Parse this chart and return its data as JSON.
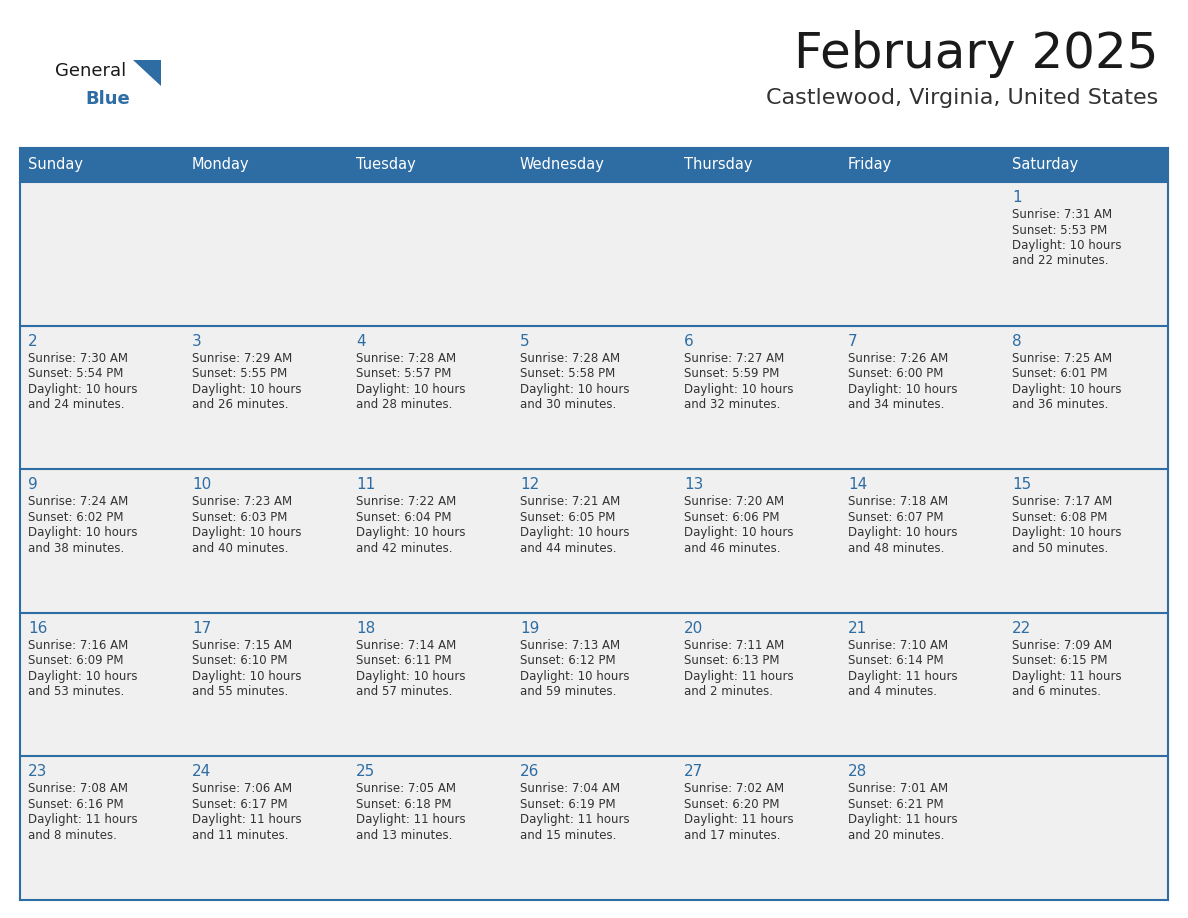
{
  "title": "February 2025",
  "subtitle": "Castlewood, Virginia, United States",
  "header_bg": "#2E6DA4",
  "header_text": "#FFFFFF",
  "row_bg": "#F0F0F0",
  "cell_bg": "#FFFFFF",
  "border_color": "#2E6DA4",
  "day_headers": [
    "Sunday",
    "Monday",
    "Tuesday",
    "Wednesday",
    "Thursday",
    "Friday",
    "Saturday"
  ],
  "title_color": "#1a1a1a",
  "subtitle_color": "#333333",
  "day_number_color": "#2E6DA4",
  "info_color": "#333333",
  "logo_general_color": "#1a1a1a",
  "logo_blue_color": "#2E6DA4",
  "logo_triangle_color": "#2E6DA4",
  "calendar_data": [
    [
      null,
      null,
      null,
      null,
      null,
      null,
      {
        "day": "1",
        "sunrise": "7:31 AM",
        "sunset": "5:53 PM",
        "daylight1": "Daylight: 10 hours",
        "daylight2": "and 22 minutes."
      }
    ],
    [
      {
        "day": "2",
        "sunrise": "7:30 AM",
        "sunset": "5:54 PM",
        "daylight1": "Daylight: 10 hours",
        "daylight2": "and 24 minutes."
      },
      {
        "day": "3",
        "sunrise": "7:29 AM",
        "sunset": "5:55 PM",
        "daylight1": "Daylight: 10 hours",
        "daylight2": "and 26 minutes."
      },
      {
        "day": "4",
        "sunrise": "7:28 AM",
        "sunset": "5:57 PM",
        "daylight1": "Daylight: 10 hours",
        "daylight2": "and 28 minutes."
      },
      {
        "day": "5",
        "sunrise": "7:28 AM",
        "sunset": "5:58 PM",
        "daylight1": "Daylight: 10 hours",
        "daylight2": "and 30 minutes."
      },
      {
        "day": "6",
        "sunrise": "7:27 AM",
        "sunset": "5:59 PM",
        "daylight1": "Daylight: 10 hours",
        "daylight2": "and 32 minutes."
      },
      {
        "day": "7",
        "sunrise": "7:26 AM",
        "sunset": "6:00 PM",
        "daylight1": "Daylight: 10 hours",
        "daylight2": "and 34 minutes."
      },
      {
        "day": "8",
        "sunrise": "7:25 AM",
        "sunset": "6:01 PM",
        "daylight1": "Daylight: 10 hours",
        "daylight2": "and 36 minutes."
      }
    ],
    [
      {
        "day": "9",
        "sunrise": "7:24 AM",
        "sunset": "6:02 PM",
        "daylight1": "Daylight: 10 hours",
        "daylight2": "and 38 minutes."
      },
      {
        "day": "10",
        "sunrise": "7:23 AM",
        "sunset": "6:03 PM",
        "daylight1": "Daylight: 10 hours",
        "daylight2": "and 40 minutes."
      },
      {
        "day": "11",
        "sunrise": "7:22 AM",
        "sunset": "6:04 PM",
        "daylight1": "Daylight: 10 hours",
        "daylight2": "and 42 minutes."
      },
      {
        "day": "12",
        "sunrise": "7:21 AM",
        "sunset": "6:05 PM",
        "daylight1": "Daylight: 10 hours",
        "daylight2": "and 44 minutes."
      },
      {
        "day": "13",
        "sunrise": "7:20 AM",
        "sunset": "6:06 PM",
        "daylight1": "Daylight: 10 hours",
        "daylight2": "and 46 minutes."
      },
      {
        "day": "14",
        "sunrise": "7:18 AM",
        "sunset": "6:07 PM",
        "daylight1": "Daylight: 10 hours",
        "daylight2": "and 48 minutes."
      },
      {
        "day": "15",
        "sunrise": "7:17 AM",
        "sunset": "6:08 PM",
        "daylight1": "Daylight: 10 hours",
        "daylight2": "and 50 minutes."
      }
    ],
    [
      {
        "day": "16",
        "sunrise": "7:16 AM",
        "sunset": "6:09 PM",
        "daylight1": "Daylight: 10 hours",
        "daylight2": "and 53 minutes."
      },
      {
        "day": "17",
        "sunrise": "7:15 AM",
        "sunset": "6:10 PM",
        "daylight1": "Daylight: 10 hours",
        "daylight2": "and 55 minutes."
      },
      {
        "day": "18",
        "sunrise": "7:14 AM",
        "sunset": "6:11 PM",
        "daylight1": "Daylight: 10 hours",
        "daylight2": "and 57 minutes."
      },
      {
        "day": "19",
        "sunrise": "7:13 AM",
        "sunset": "6:12 PM",
        "daylight1": "Daylight: 10 hours",
        "daylight2": "and 59 minutes."
      },
      {
        "day": "20",
        "sunrise": "7:11 AM",
        "sunset": "6:13 PM",
        "daylight1": "Daylight: 11 hours",
        "daylight2": "and 2 minutes."
      },
      {
        "day": "21",
        "sunrise": "7:10 AM",
        "sunset": "6:14 PM",
        "daylight1": "Daylight: 11 hours",
        "daylight2": "and 4 minutes."
      },
      {
        "day": "22",
        "sunrise": "7:09 AM",
        "sunset": "6:15 PM",
        "daylight1": "Daylight: 11 hours",
        "daylight2": "and 6 minutes."
      }
    ],
    [
      {
        "day": "23",
        "sunrise": "7:08 AM",
        "sunset": "6:16 PM",
        "daylight1": "Daylight: 11 hours",
        "daylight2": "and 8 minutes."
      },
      {
        "day": "24",
        "sunrise": "7:06 AM",
        "sunset": "6:17 PM",
        "daylight1": "Daylight: 11 hours",
        "daylight2": "and 11 minutes."
      },
      {
        "day": "25",
        "sunrise": "7:05 AM",
        "sunset": "6:18 PM",
        "daylight1": "Daylight: 11 hours",
        "daylight2": "and 13 minutes."
      },
      {
        "day": "26",
        "sunrise": "7:04 AM",
        "sunset": "6:19 PM",
        "daylight1": "Daylight: 11 hours",
        "daylight2": "and 15 minutes."
      },
      {
        "day": "27",
        "sunrise": "7:02 AM",
        "sunset": "6:20 PM",
        "daylight1": "Daylight: 11 hours",
        "daylight2": "and 17 minutes."
      },
      {
        "day": "28",
        "sunrise": "7:01 AM",
        "sunset": "6:21 PM",
        "daylight1": "Daylight: 11 hours",
        "daylight2": "and 20 minutes."
      },
      null
    ]
  ]
}
